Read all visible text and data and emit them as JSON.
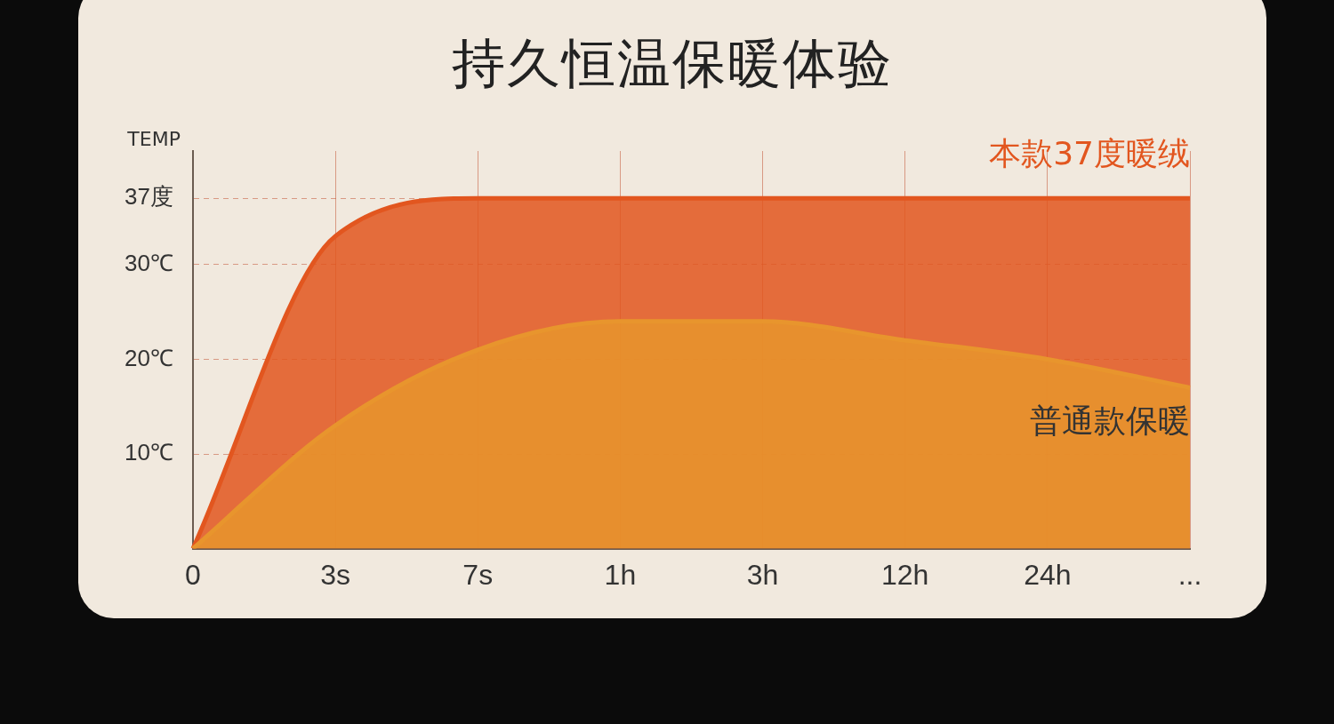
{
  "chart_data": {
    "type": "area",
    "title": "持久恒温保暖体验",
    "ylabel": "TEMP",
    "categories": [
      "0",
      "3s",
      "7s",
      "1h",
      "3h",
      "12h",
      "24h",
      "..."
    ],
    "series": [
      {
        "name": "本款37度暖绒",
        "color": "#e2561f",
        "values": [
          0,
          33,
          37,
          37,
          37,
          37,
          37,
          37
        ]
      },
      {
        "name": "普通款保暖",
        "color": "#e8952d",
        "values": [
          0,
          13,
          21,
          24,
          24,
          22,
          20,
          17
        ]
      }
    ],
    "ylim": [
      0,
      42
    ],
    "yticks": [
      {
        "value": 10,
        "label": "10℃"
      },
      {
        "value": 20,
        "label": "20℃"
      },
      {
        "value": 30,
        "label": "30℃"
      },
      {
        "value": 37,
        "label": "37度"
      }
    ],
    "grid": true,
    "legend": false,
    "marker": "none",
    "line_style": "solid"
  }
}
